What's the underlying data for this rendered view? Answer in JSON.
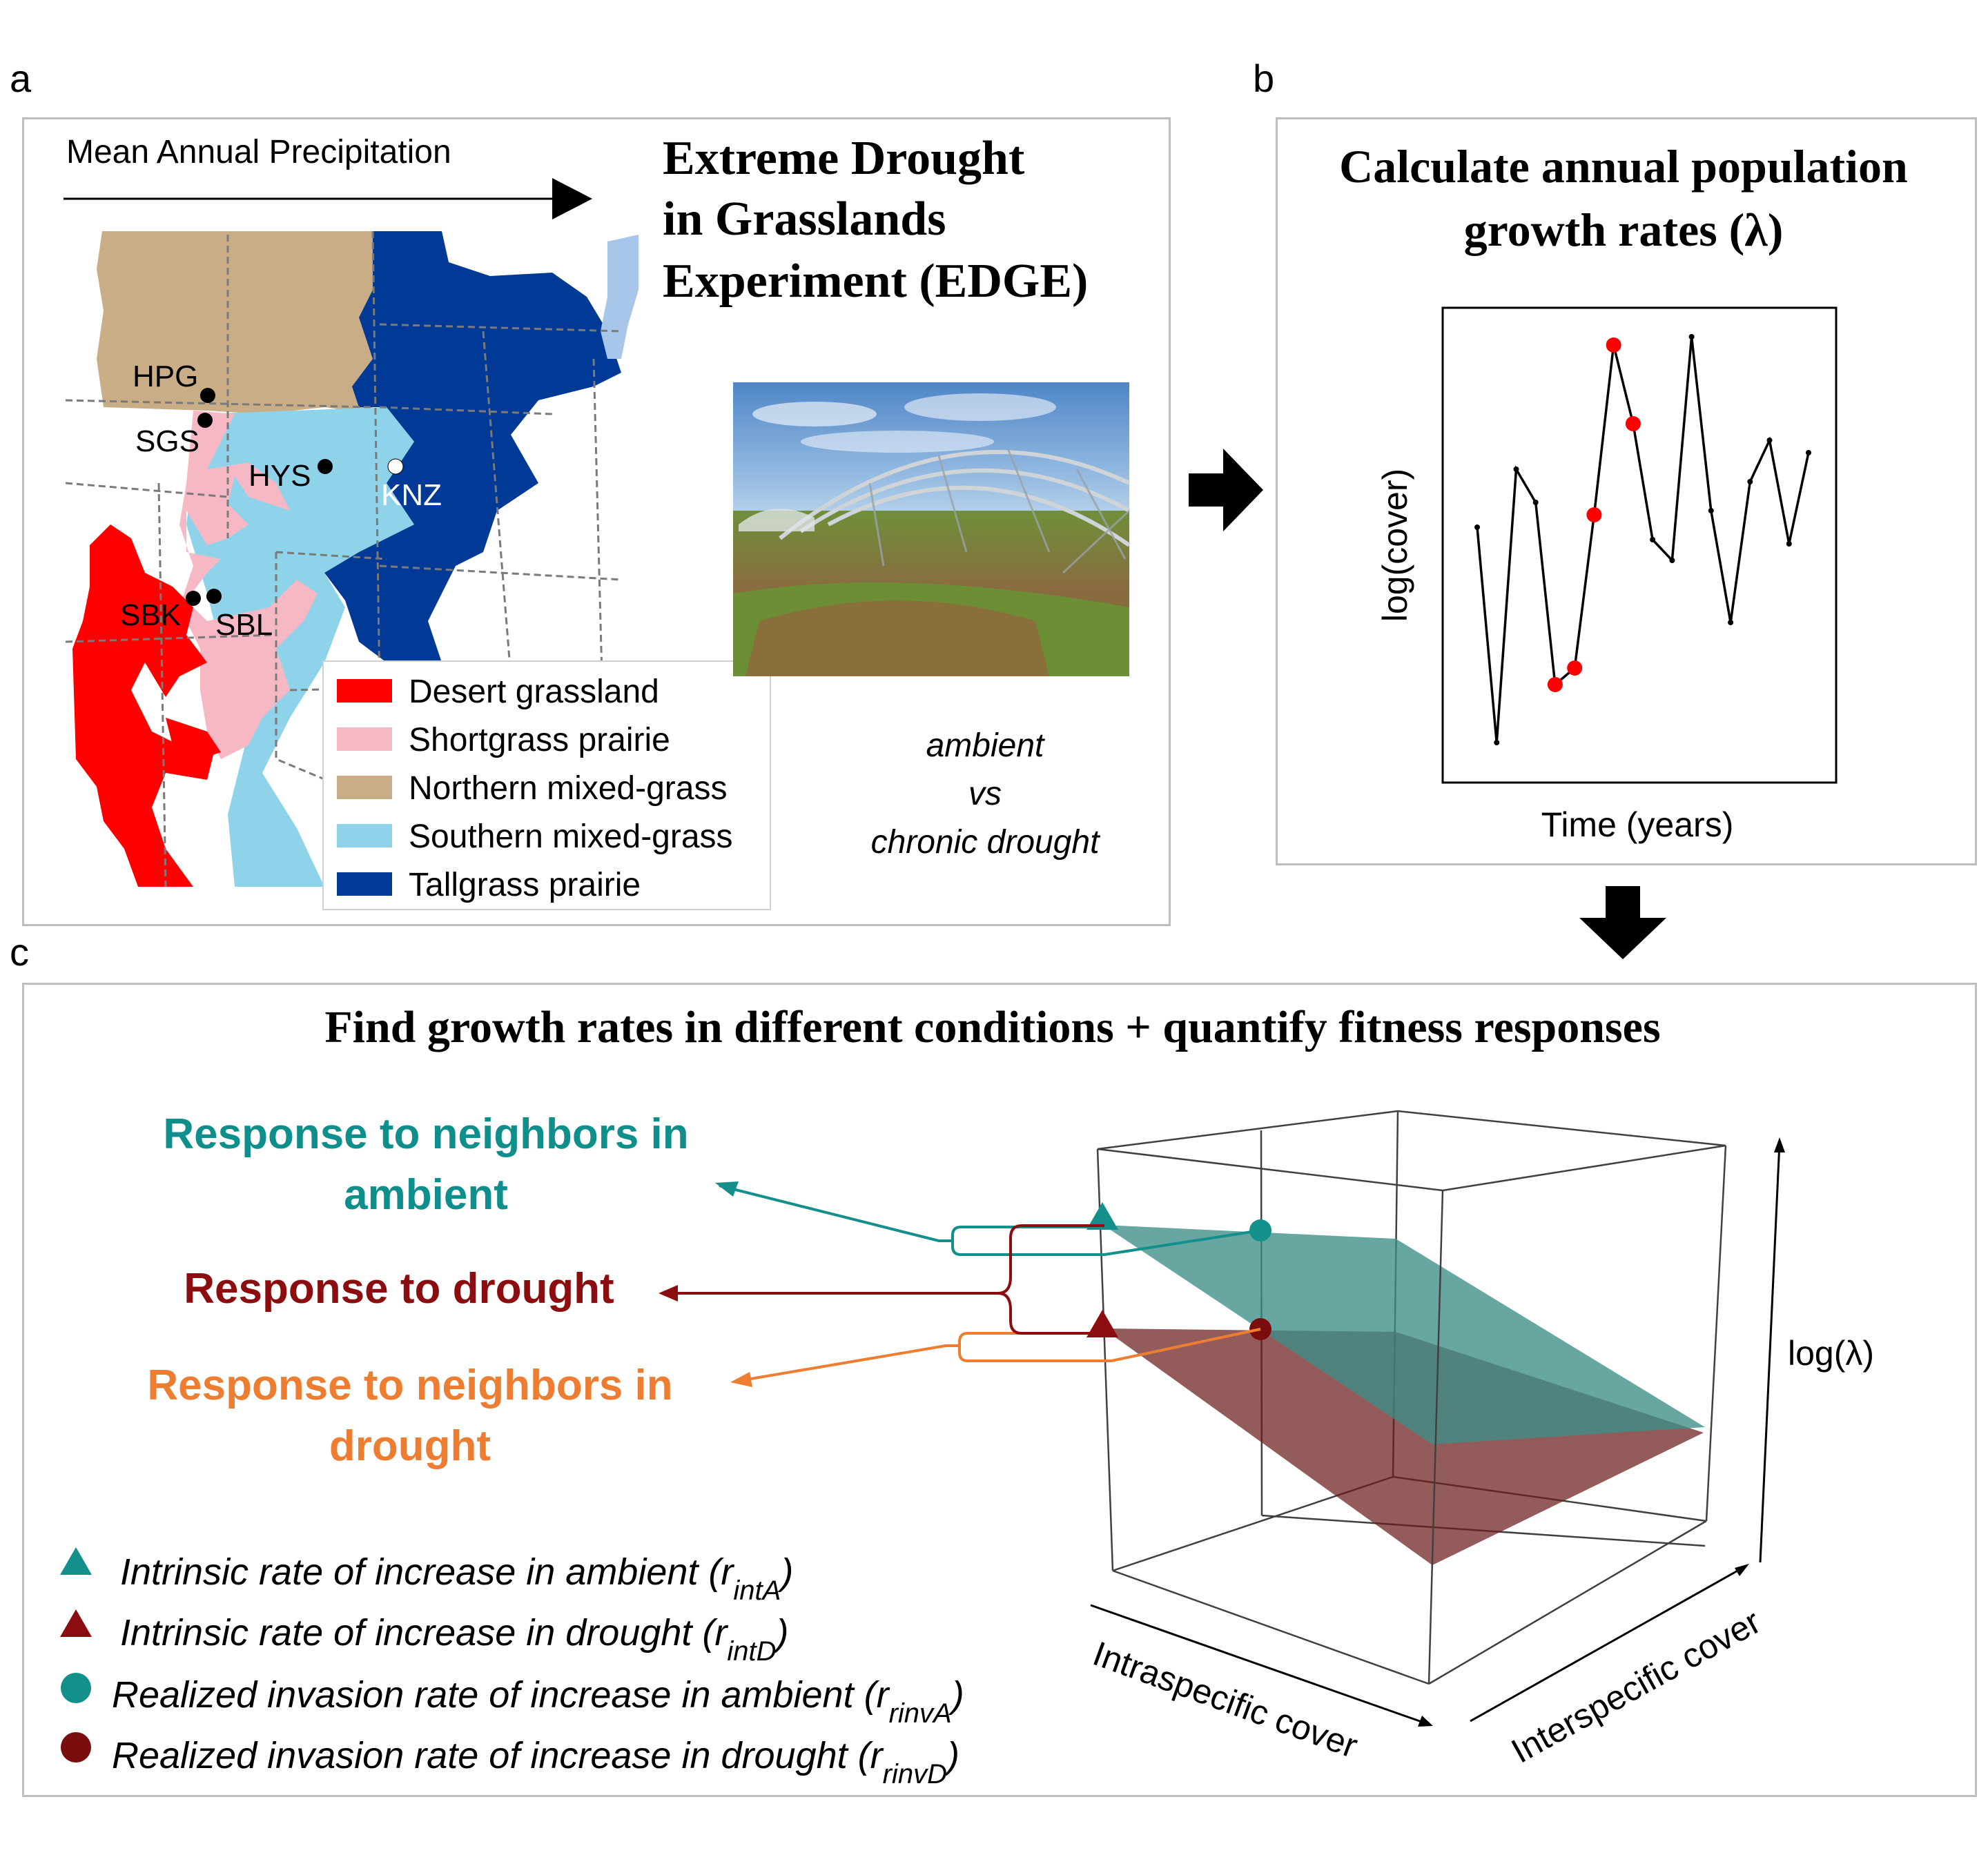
{
  "panels": {
    "a": "a",
    "b": "b",
    "c": "c"
  },
  "panel_a": {
    "precip_label": "Mean Annual Precipitation",
    "title_lines": [
      "Extreme Drought",
      "in Grasslands",
      "Experiment (EDGE)"
    ],
    "sites": [
      {
        "code": "HPG",
        "marker": "black"
      },
      {
        "code": "SGS",
        "marker": "black"
      },
      {
        "code": "HYS",
        "marker": "black"
      },
      {
        "code": "KNZ",
        "marker": "white"
      },
      {
        "code": "SBK",
        "marker": "black"
      },
      {
        "code": "SBL",
        "marker": "black"
      }
    ],
    "legend": [
      {
        "label": "Desert grassland",
        "color": "#ff0000"
      },
      {
        "label": "Shortgrass prairie",
        "color": "#f7b8c6"
      },
      {
        "label": "Northern mixed-grass",
        "color": "#c8ad87"
      },
      {
        "label": "Southern mixed-grass",
        "color": "#8fd3ea"
      },
      {
        "label": "Tallgrass prairie",
        "color": "#003a96"
      }
    ],
    "treatment_lines": [
      "ambient",
      "vs",
      "chronic drought"
    ],
    "colors": {
      "lake": "#a8c6ea",
      "border": "#7a7a7a"
    }
  },
  "panel_b": {
    "title_lines": [
      "Calculate annual population",
      "growth rates (λ)"
    ],
    "xlabel": "Time (years)",
    "ylabel": "log(cover)",
    "chart_data": {
      "type": "line",
      "xlabel": "Time (years)",
      "ylabel": "log(cover)",
      "values": [
        0.56,
        0.04,
        0.7,
        0.62,
        0.18,
        0.22,
        0.59,
        1.0,
        0.81,
        0.53,
        0.48,
        1.02,
        0.6,
        0.33,
        0.67,
        0.77,
        0.52,
        0.74
      ],
      "highlighted_indices": [
        4,
        5,
        6,
        7,
        8
      ],
      "line_color": "#000000",
      "highlight_color": "#ff0000"
    }
  },
  "panel_c": {
    "title": "Find growth rates in different conditions + quantify fitness responses",
    "responses": [
      {
        "lines": [
          "Response to neighbors in",
          "ambient"
        ],
        "color": "#0f8f8c"
      },
      {
        "lines": [
          "Response to drought"
        ],
        "color": "#8b0d10"
      },
      {
        "lines": [
          "Response to neighbors in",
          "drought"
        ],
        "color": "#ed7d31"
      }
    ],
    "legend": [
      {
        "text": "Intrinsic rate of increase in ambient (r",
        "sub": "intA",
        "close": ")",
        "symbol": "triangle",
        "color": "#13908b"
      },
      {
        "text": "Intrinsic rate of increase in drought (r",
        "sub": "intD",
        "close": ")",
        "symbol": "triangle",
        "color": "#8b0d10"
      },
      {
        "text": "Realized invasion rate of increase in ambient (r",
        "sub": "rinvA",
        "close": ")",
        "symbol": "circle",
        "color": "#13908b"
      },
      {
        "text": "Realized invasion rate of increase in drought (r",
        "sub": "rinvD",
        "close": ")",
        "symbol": "circle",
        "color": "#8b0d10"
      }
    ],
    "axis_x": "Intraspecific cover",
    "axis_y": "Interspecific cover",
    "axis_z": "log(λ)",
    "plane_colors": {
      "ambient": "#3e8d88",
      "drought": "#6b1c1c"
    }
  }
}
